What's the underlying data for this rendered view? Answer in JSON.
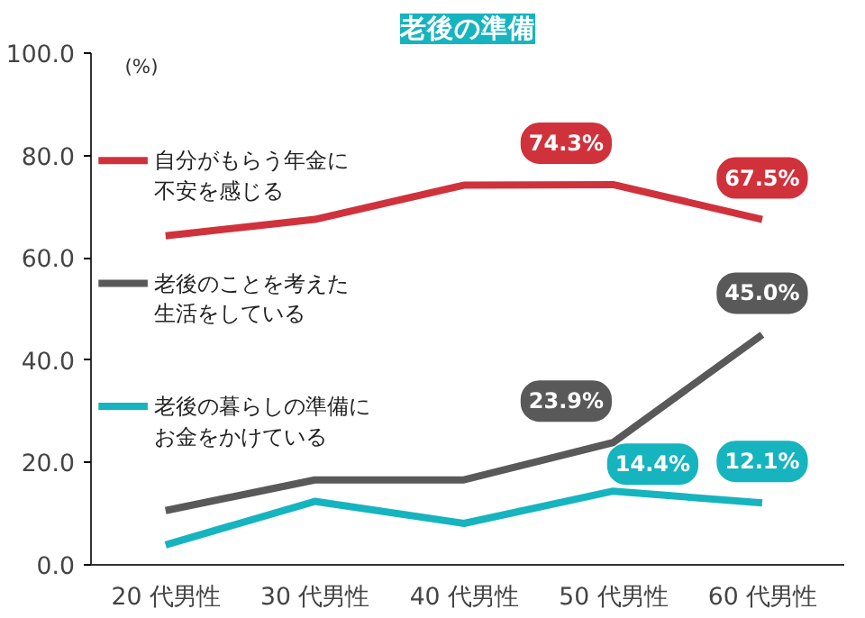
{
  "chart_data": {
    "type": "line",
    "title": "老後の準備",
    "ylabel": "(%)",
    "categories": [
      "20 代男性",
      "30 代男性",
      "40 代男性",
      "50 代男性",
      "60 代男性"
    ],
    "ylim": [
      0,
      100
    ],
    "yticks": [
      {
        "value": 0,
        "label": "0.0"
      },
      {
        "value": 20,
        "label": "20.0"
      },
      {
        "value": 40,
        "label": "40.0"
      },
      {
        "value": 60,
        "label": "60.0"
      },
      {
        "value": 80,
        "label": "80.0"
      },
      {
        "value": 100,
        "label": "100.0"
      }
    ],
    "grid": false,
    "legend": "left",
    "marker": "none",
    "line_style": "solid",
    "series": [
      {
        "name": "自分がもらう年金に不安を感じる",
        "color": "#d0323c",
        "values": [
          64.3,
          67.5,
          74.2,
          74.3,
          67.5
        ],
        "value_labels": [
          null,
          null,
          null,
          "74.3%",
          "67.5%"
        ]
      },
      {
        "name": "老後のことを考えた生活をしている",
        "color": "#595959",
        "values": [
          10.6,
          16.6,
          16.6,
          23.9,
          45.0
        ],
        "value_labels": [
          null,
          null,
          null,
          "23.9%",
          "45.0%"
        ]
      },
      {
        "name": "老後の暮らしの準備にお金をかけている",
        "color": "#16b4bf",
        "values": [
          3.9,
          12.4,
          8.1,
          14.4,
          12.1
        ],
        "value_labels": [
          null,
          null,
          null,
          "14.4%",
          "12.1%"
        ]
      }
    ]
  }
}
